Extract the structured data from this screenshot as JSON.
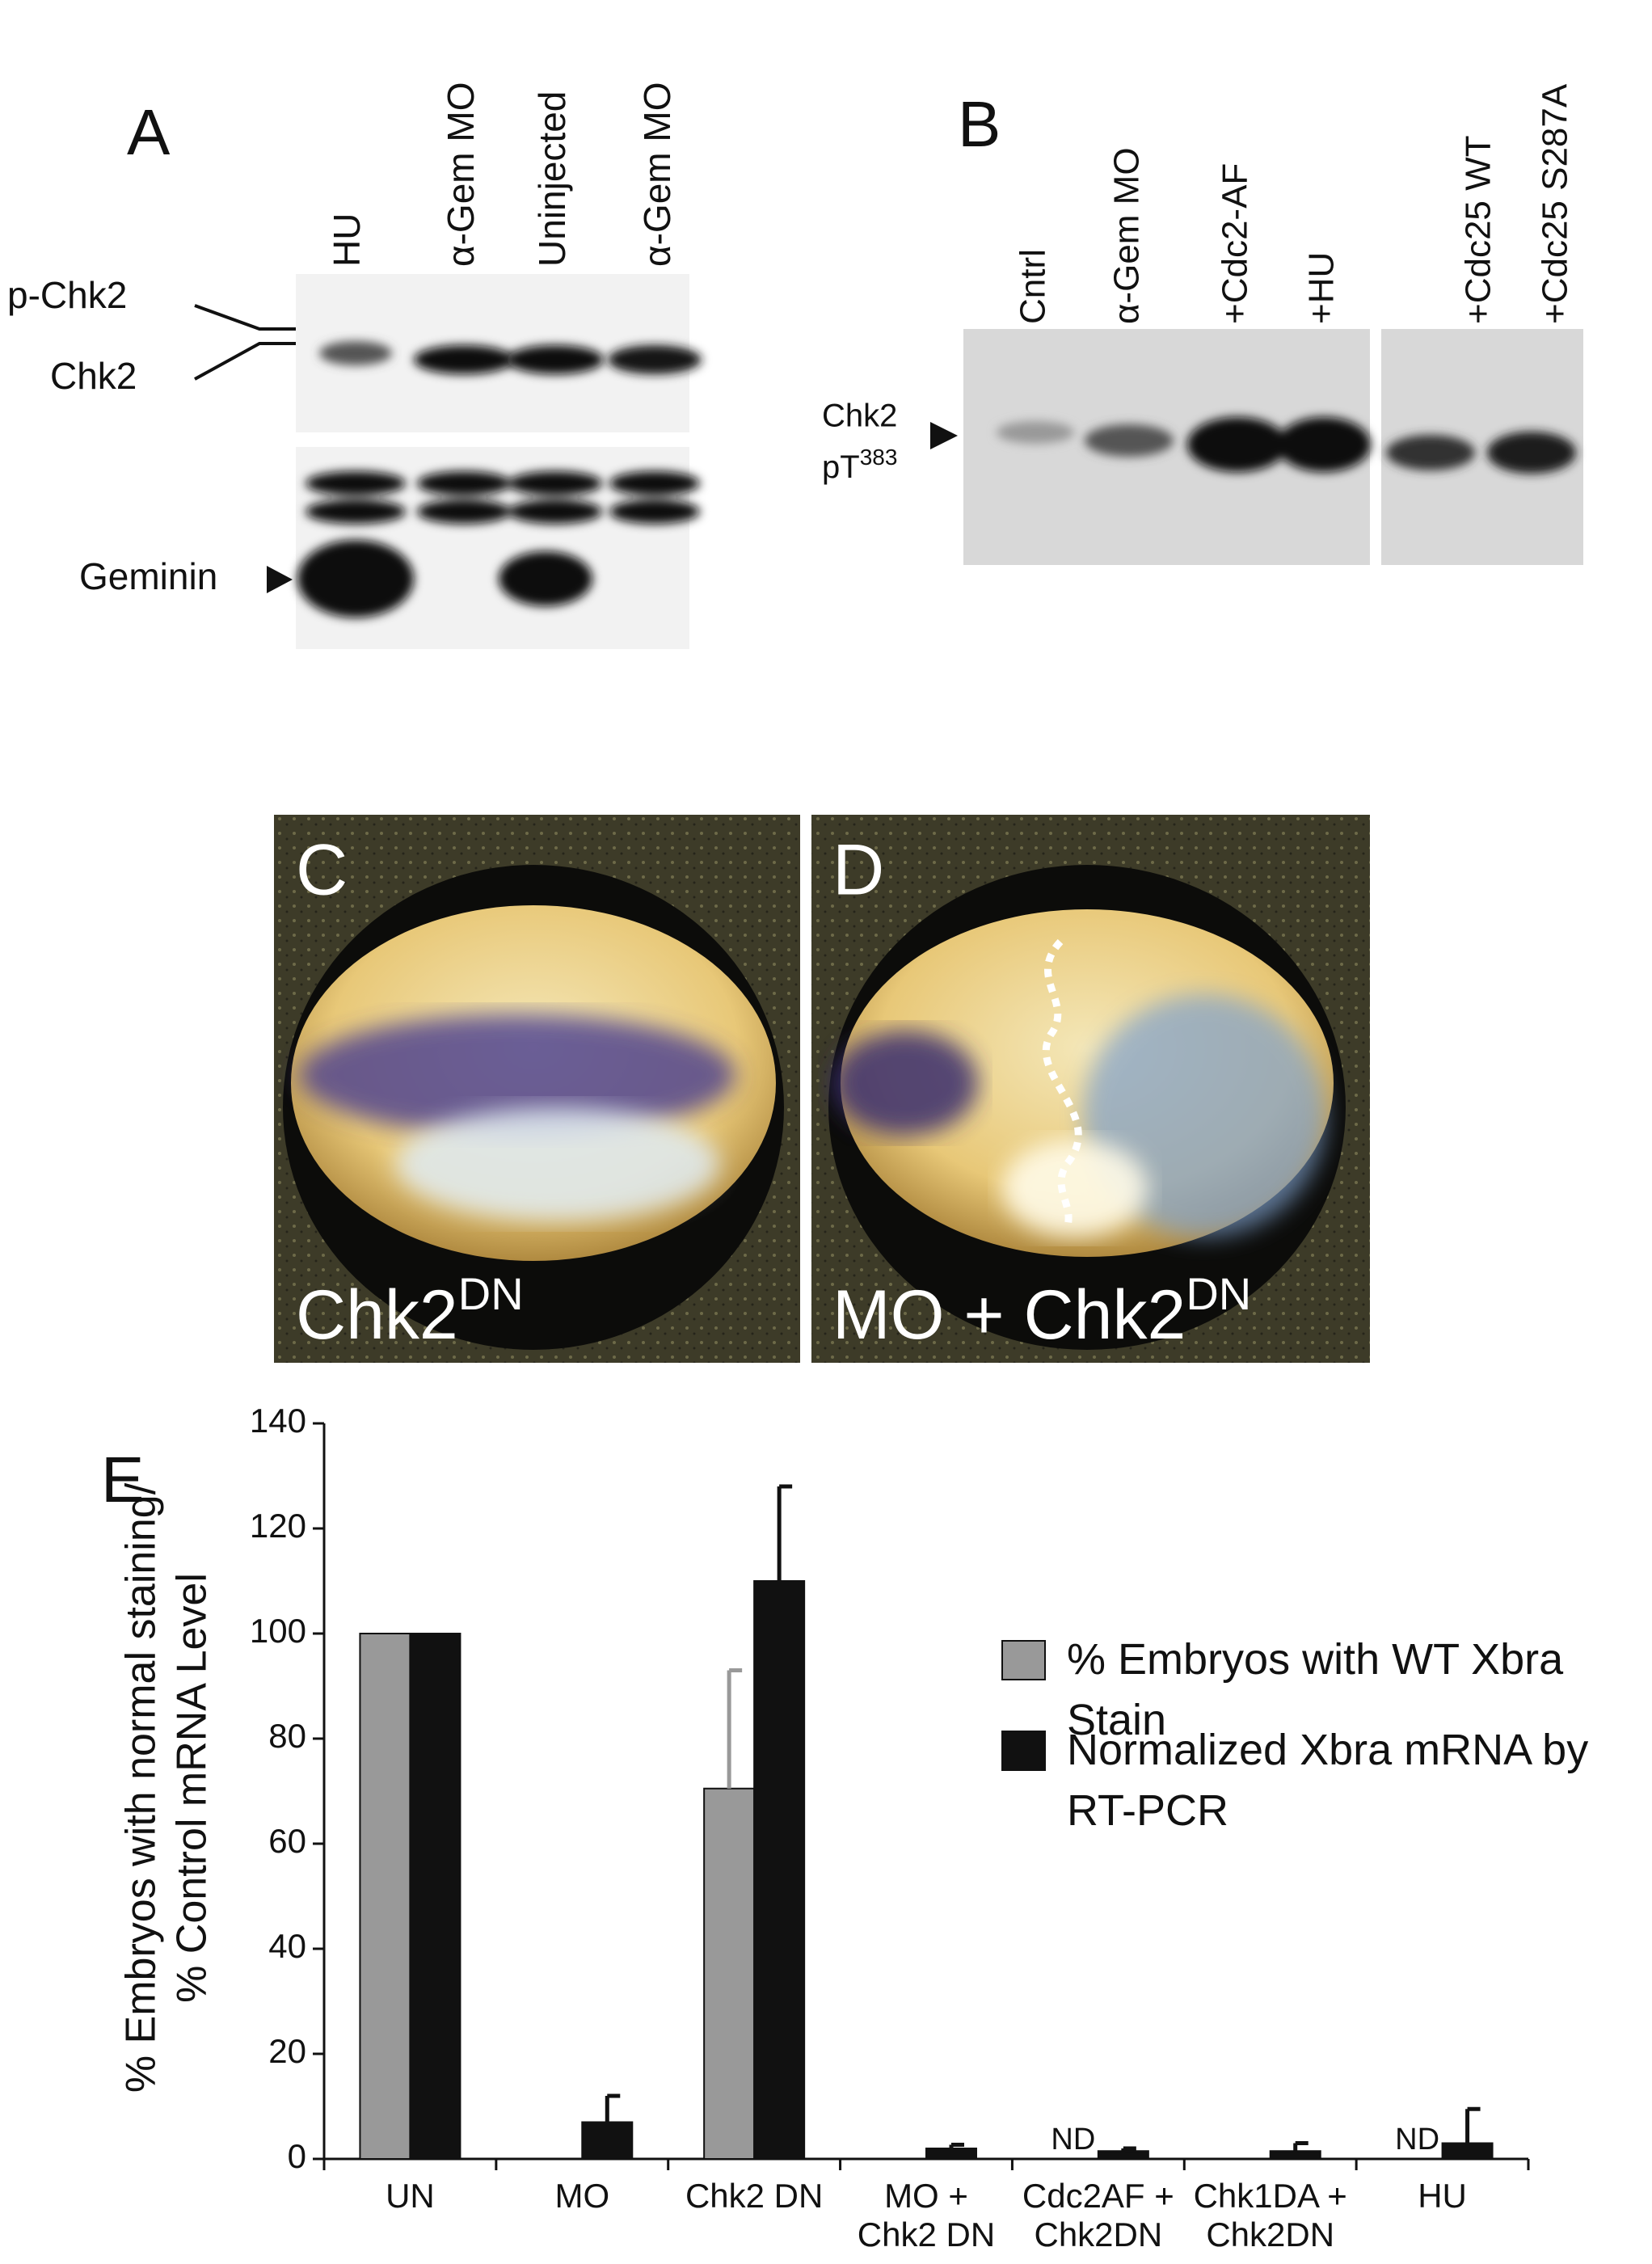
{
  "panels": {
    "A": {
      "label": "A",
      "lanes": [
        "HU",
        "α-Gem MO",
        "Uninjected",
        "α-Gem MO"
      ],
      "markers": [
        "p-Chk2",
        "Chk2",
        "Geminin"
      ]
    },
    "B": {
      "label": "B",
      "lanes": [
        "Cntrl",
        "α-Gem MO",
        "+Cdc2-AF",
        "+HU",
        "+Cdc25 WT",
        "+Cdc25 S287A"
      ],
      "marker": {
        "line1": "Chk2",
        "text": "pT",
        "superscript": "383"
      }
    },
    "C": {
      "label": "C",
      "caption": {
        "text": "Chk2",
        "superscript": "DN"
      }
    },
    "D": {
      "label": "D",
      "caption": {
        "text": "MO + Chk2",
        "superscript": "DN"
      }
    }
  },
  "chart_data": {
    "type": "bar",
    "panel_label": "E",
    "ylabel": [
      "% Embryos with normal staining/",
      "% Control mRNA Level"
    ],
    "categories": [
      "UN",
      "MO",
      "Chk2 DN",
      "MO + Chk2 DN",
      "Cdc2AF + Chk2DN",
      "Chk1DA + Chk2DN",
      "HU"
    ],
    "series": [
      {
        "name": "% Embryos with WT Xbra Stain",
        "color": "#999999",
        "values": [
          100,
          0,
          70.5,
          0,
          null,
          0,
          null
        ],
        "errors": [
          0,
          0,
          22.5,
          0,
          null,
          0,
          null
        ],
        "value_labels": [
          null,
          null,
          null,
          null,
          "ND",
          null,
          "ND"
        ]
      },
      {
        "name": "Normalized Xbra mRNA by RT-PCR",
        "color": "#111111",
        "values": [
          100,
          7,
          110,
          2,
          1.5,
          1.5,
          3
        ],
        "errors": [
          0,
          5,
          18,
          0.7,
          0.5,
          1.5,
          6.5
        ]
      }
    ],
    "ylim": [
      0,
      140
    ],
    "yticks": [
      0,
      20,
      40,
      60,
      80,
      100,
      120,
      140
    ]
  }
}
